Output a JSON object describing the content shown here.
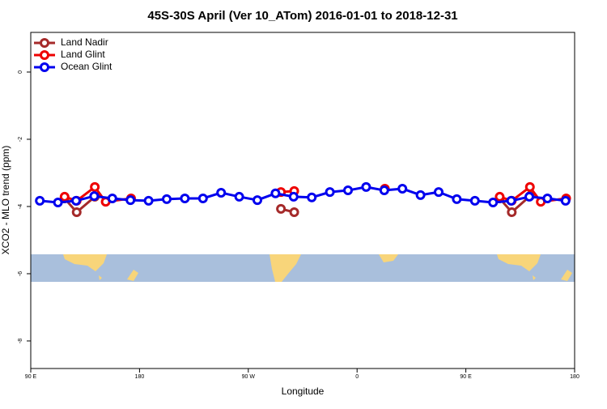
{
  "chart_data": {
    "type": "line",
    "title": "45S-30S April (Ver 10_ATom)   2016-01-01 to 2018-12-31",
    "x_label": "Longitude",
    "y_label": "XCO2 - MLO trend (ppm)",
    "xlim": [
      90,
      540
    ],
    "xticks": [
      {
        "value": 90,
        "label": "90 E"
      },
      180,
      {
        "value": 270,
        "label": "90 W"
      },
      {
        "value": 360,
        "label": "0"
      },
      {
        "value": 450,
        "label": "90 E"
      },
      {
        "value": 540,
        "label": "180"
      }
    ],
    "ylim": [
      -8.82,
      1.18
    ],
    "yticks": [
      0,
      -2,
      -4,
      -6,
      -8
    ],
    "legend": "top-left",
    "series": [
      {
        "name": "Land Nadir",
        "color": "#a52a2a",
        "x": [
          118,
          128,
          143,
          null,
          297,
          308,
          null,
          478,
          488,
          503
        ],
        "values": [
          -3.76,
          -4.17,
          -3.71,
          null,
          -4.07,
          -4.17,
          null,
          -3.76,
          -4.17,
          -3.69
        ]
      },
      {
        "name": "Land Glint",
        "color": "#ee0000",
        "x": [
          118,
          128,
          143,
          152,
          173,
          null,
          297,
          308,
          null,
          383,
          null,
          478,
          488,
          503,
          512,
          533
        ],
        "values": [
          -3.71,
          -3.83,
          -3.42,
          -3.86,
          -3.76,
          null,
          -3.57,
          -3.54,
          null,
          -3.47,
          null,
          -3.71,
          -3.83,
          -3.42,
          -3.86,
          -3.76
        ]
      },
      {
        "name": "Ocean Glint",
        "color": "#0000ee",
        "x": [
          97.5,
          112.5,
          127.5,
          142.5,
          157.5,
          172.5,
          187.5,
          202.5,
          217.5,
          232.5,
          247.5,
          262.5,
          277.5,
          292.5,
          307.5,
          322.5,
          337.5,
          352.5,
          367.5,
          382.5,
          397.5,
          412.5,
          427.5,
          442.5,
          457.5,
          472.5,
          487.5,
          502.5,
          517.5,
          532.5
        ],
        "values": [
          -3.83,
          -3.88,
          -3.83,
          -3.69,
          -3.76,
          -3.81,
          -3.83,
          -3.78,
          -3.76,
          -3.76,
          -3.59,
          -3.71,
          -3.81,
          -3.61,
          -3.71,
          -3.73,
          -3.57,
          -3.52,
          -3.42,
          -3.52,
          -3.47,
          -3.66,
          -3.57,
          -3.78,
          -3.83,
          -3.88,
          -3.83,
          -3.71,
          -3.76,
          -3.83
        ]
      }
    ]
  }
}
